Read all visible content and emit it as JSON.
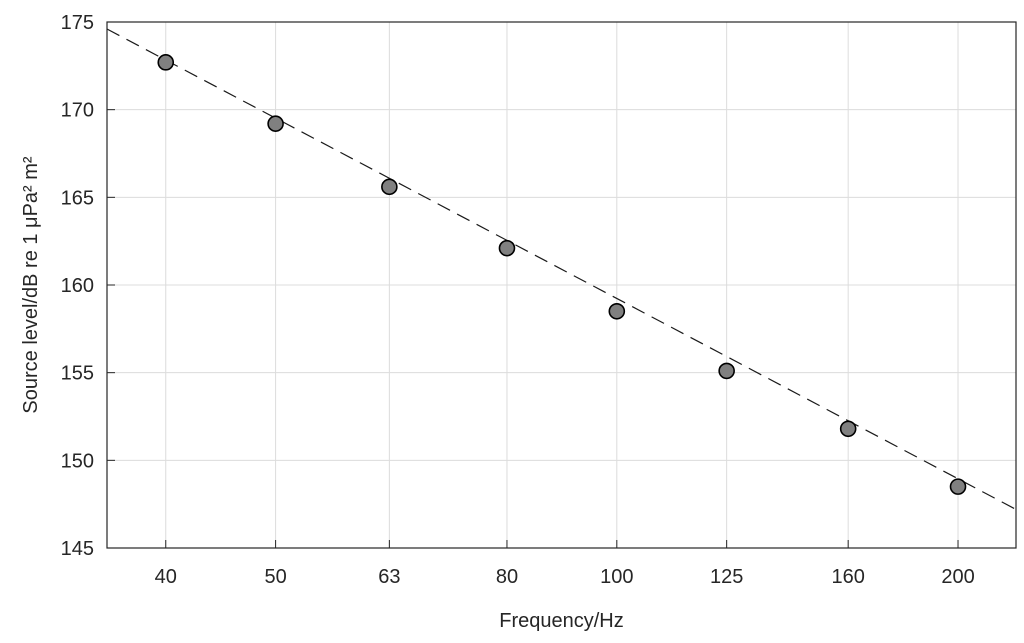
{
  "chart_data": {
    "type": "scatter",
    "title": "",
    "xlabel": "Frequency/Hz",
    "ylabel": "Source level/dB re 1 μPa² m²",
    "x_scale": "log",
    "xlim": [
      35.5,
      225
    ],
    "ylim": [
      145,
      175
    ],
    "x_ticks": [
      40,
      50,
      63,
      80,
      100,
      125,
      160,
      200
    ],
    "y_ticks": [
      145,
      150,
      155,
      160,
      165,
      170,
      175
    ],
    "grid": true,
    "series": [
      {
        "marker": "circle",
        "color": "#808080",
        "x": [
          40,
          50,
          63,
          80,
          100,
          125,
          160,
          200
        ],
        "y": [
          172.7,
          169.2,
          165.6,
          162.1,
          158.5,
          155.1,
          151.8,
          148.5
        ]
      },
      {
        "style": "dashed",
        "color": "#1a1a1a",
        "x": [
          35.5,
          225
        ],
        "y": [
          174.6,
          147.2
        ]
      }
    ]
  },
  "colors": {
    "marker_fill": "#808080",
    "marker_edge": "#000000",
    "fit_line": "#1a1a1a",
    "grid": "#dcdcdc",
    "text": "#262626"
  }
}
